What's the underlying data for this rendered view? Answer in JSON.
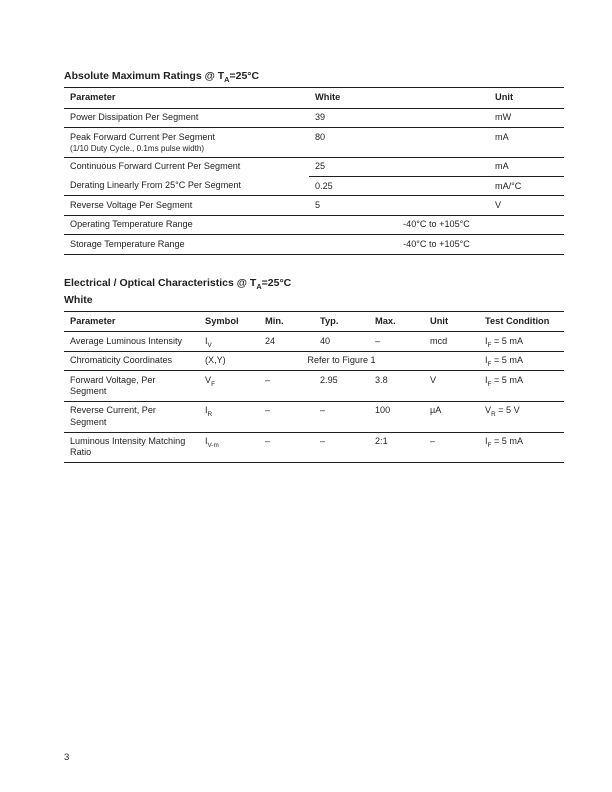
{
  "page_number": "3",
  "t1": {
    "title_prefix": "Absolute Maximum Ratings @ T",
    "title_sub": "A",
    "title_suffix": "=25°C",
    "col_widths_pct": [
      49,
      36,
      15
    ],
    "headers": [
      "Parameter",
      "White",
      "Unit"
    ],
    "rows": [
      {
        "cells": [
          "Power Dissipation Per Segment",
          "39",
          "mW"
        ],
        "bottom": "thin"
      },
      {
        "cells": [
          "Peak Forward Current Per Segment",
          "80",
          "mA"
        ],
        "sub": "(1/10  Duty Cycle., 0.1ms pulse width)",
        "bottom": "thin"
      },
      {
        "cells": [
          "Continuous Forward Current Per Segment",
          "25",
          "mA"
        ],
        "bottom": "thin_partial_start2"
      },
      {
        "cells": [
          "Derating Linearly From 25°C Per Segment",
          "0.25",
          "mA/°C"
        ],
        "bottom": "thin"
      },
      {
        "cells": [
          "Reverse Voltage Per Segment",
          "5",
          "V"
        ],
        "bottom": "thin"
      },
      {
        "cells": [
          "Operating Temperature Range",
          "",
          ""
        ],
        "center_span": "-40°C to +105°C",
        "bottom": "thin"
      },
      {
        "cells": [
          "Storage Temperature Range",
          "",
          ""
        ],
        "center_span": "-40°C to +105°C",
        "bottom": "heavy"
      }
    ]
  },
  "t2": {
    "title_prefix": "Electrical / Optical Characteristics @ T",
    "title_sub": "A",
    "title_suffix": "=25°C",
    "subtitle": "White",
    "col_widths_pct": [
      27,
      12,
      11,
      11,
      11,
      11,
      17
    ],
    "headers": [
      "Parameter",
      "Symbol",
      "Min.",
      "Typ.",
      "Max.",
      "Unit",
      "Test Condition"
    ],
    "rows": [
      {
        "p": "Average Luminous Intensity",
        "sym_html": "I<sub>V</sub>",
        "min": "24",
        "typ": "40",
        "max": "–",
        "unit": "mcd",
        "tc_html": "I<sub>F</sub> = 5 mA",
        "bottom": "thin"
      },
      {
        "p": "Chromaticity Coordinates",
        "sym_html": "(X,Y)",
        "span345": "Refer to Figure 1",
        "unit": "",
        "tc_html": "I<sub>F</sub> = 5 mA",
        "bottom": "thin"
      },
      {
        "p": "Forward Voltage, Per Segment",
        "sym_html": "V<sub>F</sub>",
        "min": "–",
        "typ": "2.95",
        "max": "3.8",
        "unit": "V",
        "tc_html": "I<sub>F</sub> = 5 mA",
        "bottom": "thin"
      },
      {
        "p": "Reverse Current, Per Segment",
        "sym_html": "I<sub>R</sub>",
        "min": "–",
        "typ": "–",
        "max": "100",
        "unit": "µA",
        "tc_html": "V<sub>R</sub> = 5 V",
        "bottom": "thin"
      },
      {
        "p": "Luminous Intensity Matching Ratio",
        "sym_html": "I<sub>V-m</sub>",
        "min": "–",
        "typ": "–",
        "max": "2:1",
        "unit": "–",
        "tc_html": "I<sub>F</sub> = 5 mA",
        "bottom": "heavy"
      }
    ]
  },
  "colors": {
    "text": "#231f20",
    "bg": "#ffffff",
    "rule": "#231f20"
  }
}
